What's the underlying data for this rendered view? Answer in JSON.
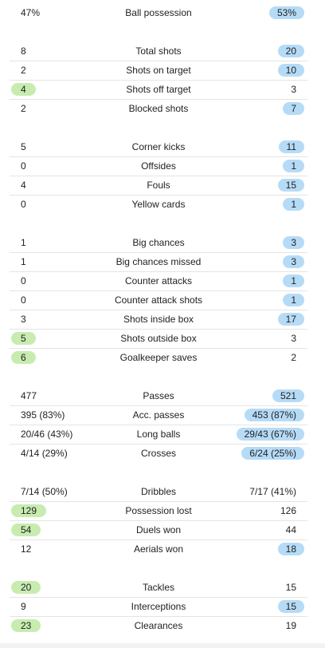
{
  "stats": [
    {
      "label": "Ball possession",
      "home": "47%",
      "away": "53%",
      "leader": "away"
    },
    {
      "label": "Total shots",
      "home": "8",
      "away": "20",
      "leader": "away"
    },
    {
      "label": "Shots on target",
      "home": "2",
      "away": "10",
      "leader": "away"
    },
    {
      "label": "Shots off target",
      "home": "4",
      "away": "3",
      "leader": "home"
    },
    {
      "label": "Blocked shots",
      "home": "2",
      "away": "7",
      "leader": "away"
    },
    {
      "label": "Corner kicks",
      "home": "5",
      "away": "11",
      "leader": "away"
    },
    {
      "label": "Offsides",
      "home": "0",
      "away": "1",
      "leader": "away"
    },
    {
      "label": "Fouls",
      "home": "4",
      "away": "15",
      "leader": "away"
    },
    {
      "label": "Yellow cards",
      "home": "0",
      "away": "1",
      "leader": "away"
    },
    {
      "label": "Big chances",
      "home": "1",
      "away": "3",
      "leader": "away"
    },
    {
      "label": "Big chances missed",
      "home": "1",
      "away": "3",
      "leader": "away"
    },
    {
      "label": "Counter attacks",
      "home": "0",
      "away": "1",
      "leader": "away"
    },
    {
      "label": "Counter attack shots",
      "home": "0",
      "away": "1",
      "leader": "away"
    },
    {
      "label": "Shots inside box",
      "home": "3",
      "away": "17",
      "leader": "away"
    },
    {
      "label": "Shots outside box",
      "home": "5",
      "away": "3",
      "leader": "home"
    },
    {
      "label": "Goalkeeper saves",
      "home": "6",
      "away": "2",
      "leader": "home"
    },
    {
      "label": "Passes",
      "home": "477",
      "away": "521",
      "leader": "away"
    },
    {
      "label": "Acc. passes",
      "home": "395 (83%)",
      "away": "453 (87%)",
      "leader": "away"
    },
    {
      "label": "Long balls",
      "home": "20/46 (43%)",
      "away": "29/43 (67%)",
      "leader": "away"
    },
    {
      "label": "Crosses",
      "home": "4/14 (29%)",
      "away": "6/24 (25%)",
      "leader": "away"
    },
    {
      "label": "Dribbles",
      "home": "7/14 (50%)",
      "away": "7/17 (41%)",
      "leader": "none"
    },
    {
      "label": "Possession lost",
      "home": "129",
      "away": "126",
      "leader": "home"
    },
    {
      "label": "Duels won",
      "home": "54",
      "away": "44",
      "leader": "home"
    },
    {
      "label": "Aerials won",
      "home": "12",
      "away": "18",
      "leader": "away"
    },
    {
      "label": "Tackles",
      "home": "20",
      "away": "15",
      "leader": "home"
    },
    {
      "label": "Interceptions",
      "home": "9",
      "away": "15",
      "leader": "away"
    },
    {
      "label": "Clearances",
      "home": "23",
      "away": "19",
      "leader": "home"
    }
  ],
  "colors": {
    "home_highlight": "#c8ecb0",
    "away_highlight": "#b6dbf7",
    "divider": "#e4e4e4"
  }
}
